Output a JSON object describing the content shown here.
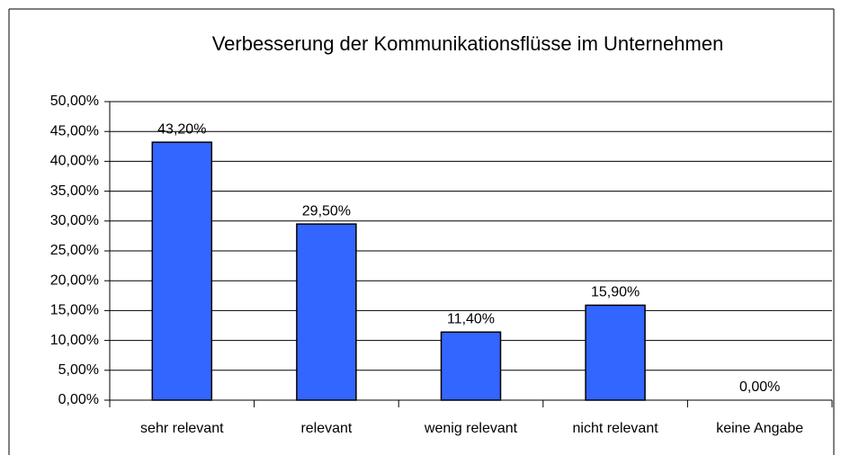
{
  "chart_data": {
    "type": "bar",
    "title": "Verbesserung der Kommunikationsflüsse im Unternehmen",
    "categories": [
      "sehr relevant",
      "relevant",
      "wenig relevant",
      "nicht relevant",
      "keine Angabe"
    ],
    "values": [
      43.2,
      29.5,
      11.4,
      15.9,
      0
    ],
    "value_labels": [
      "43,20%",
      "29,50%",
      "11,40%",
      "15,90%",
      "0,00%"
    ],
    "color": "#3366ff",
    "ylim": [
      0,
      50
    ],
    "yticks": [
      {
        "value": 0,
        "label": "0,00%"
      },
      {
        "value": 5,
        "label": "5,00%"
      },
      {
        "value": 10,
        "label": "10,00%"
      },
      {
        "value": 15,
        "label": "15,00%"
      },
      {
        "value": 20,
        "label": "20,00%"
      },
      {
        "value": 25,
        "label": "25,00%"
      },
      {
        "value": 30,
        "label": "30,00%"
      },
      {
        "value": 35,
        "label": "35,00%"
      },
      {
        "value": 40,
        "label": "40,00%"
      },
      {
        "value": 45,
        "label": "45,00%"
      },
      {
        "value": 50,
        "label": "50,00%"
      }
    ],
    "grid": true
  }
}
